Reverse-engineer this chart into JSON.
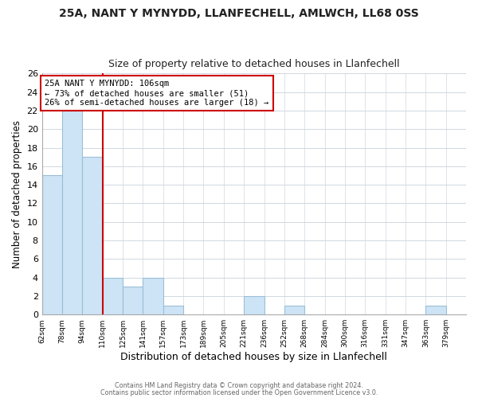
{
  "title1": "25A, NANT Y MYNYDD, LLANFECHELL, AMLWCH, LL68 0SS",
  "title2": "Size of property relative to detached houses in Llanfechell",
  "xlabel": "Distribution of detached houses by size in Llanfechell",
  "ylabel": "Number of detached properties",
  "bin_labels": [
    "62sqm",
    "78sqm",
    "94sqm",
    "110sqm",
    "125sqm",
    "141sqm",
    "157sqm",
    "173sqm",
    "189sqm",
    "205sqm",
    "221sqm",
    "236sqm",
    "252sqm",
    "268sqm",
    "284sqm",
    "300sqm",
    "316sqm",
    "331sqm",
    "347sqm",
    "363sqm",
    "379sqm"
  ],
  "bin_values": [
    15,
    22,
    17,
    4,
    3,
    4,
    1,
    0,
    0,
    0,
    2,
    0,
    1,
    0,
    0,
    0,
    0,
    0,
    0,
    1,
    0
  ],
  "bar_color": "#cce4f5",
  "bar_edge_color": "#9bbfd6",
  "vline_color": "#cc0000",
  "vline_x_index": 3,
  "annotation_text": "25A NANT Y MYNYDD: 106sqm\n← 73% of detached houses are smaller (51)\n26% of semi-detached houses are larger (18) →",
  "annotation_box_edge": "#cc0000",
  "ylim": [
    0,
    26
  ],
  "yticks": [
    0,
    2,
    4,
    6,
    8,
    10,
    12,
    14,
    16,
    18,
    20,
    22,
    24,
    26
  ],
  "footnote1": "Contains HM Land Registry data © Crown copyright and database right 2024.",
  "footnote2": "Contains public sector information licensed under the Open Government Licence v3.0.",
  "bg_color": "#ffffff",
  "plot_bg_color": "#ffffff",
  "grid_color": "#d0d8e0",
  "title1_fontsize": 10,
  "title2_fontsize": 9
}
